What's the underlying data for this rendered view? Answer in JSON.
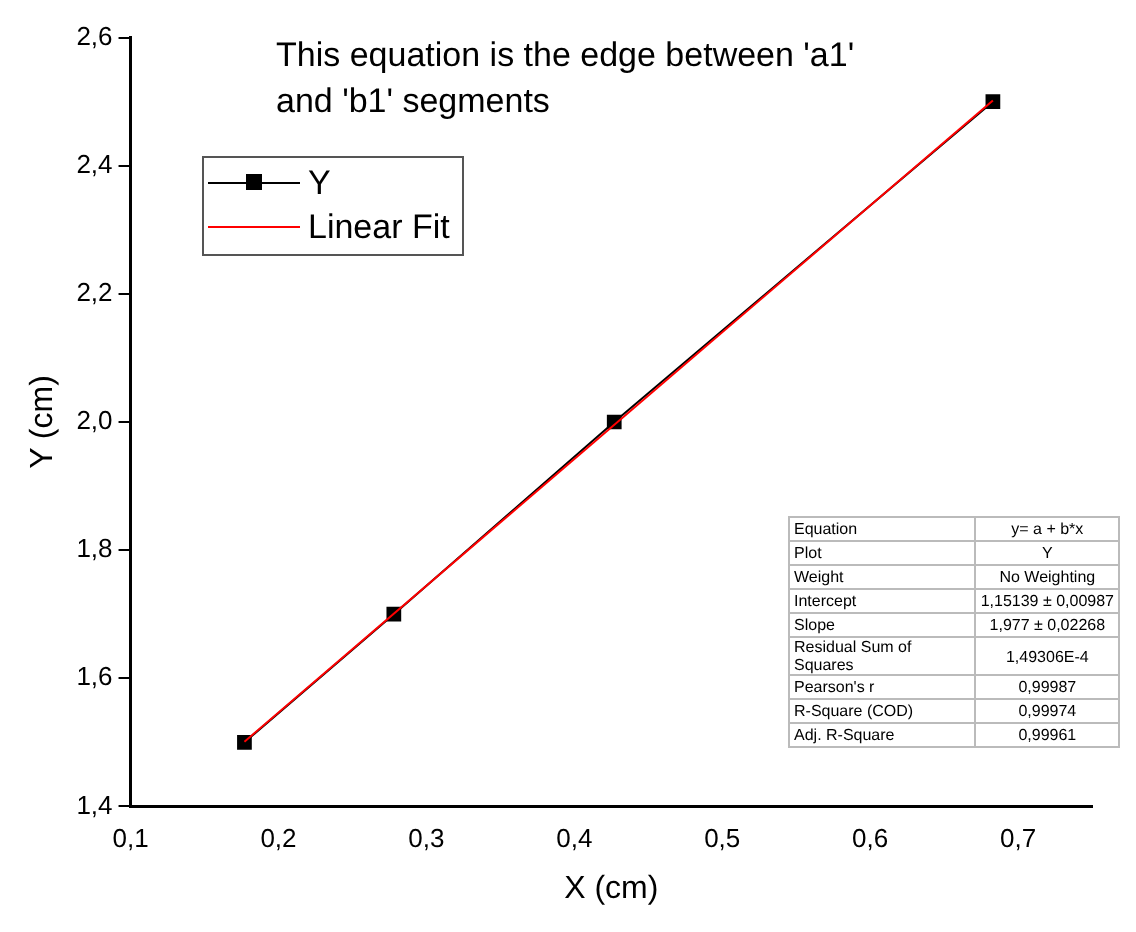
{
  "chart_data": {
    "type": "line",
    "xlabel": "X (cm)",
    "ylabel": "Y (cm)",
    "xlim": [
      0.1,
      0.75
    ],
    "ylim": [
      1.4,
      2.6
    ],
    "xticks": [
      {
        "value": 0.1,
        "label": "0,1"
      },
      {
        "value": 0.2,
        "label": "0,2"
      },
      {
        "value": 0.3,
        "label": "0,3"
      },
      {
        "value": 0.4,
        "label": "0,4"
      },
      {
        "value": 0.5,
        "label": "0,5"
      },
      {
        "value": 0.6,
        "label": "0,6"
      },
      {
        "value": 0.7,
        "label": "0,7"
      }
    ],
    "yticks": [
      {
        "value": 1.4,
        "label": "1,4"
      },
      {
        "value": 1.6,
        "label": "1,6"
      },
      {
        "value": 1.8,
        "label": "1,8"
      },
      {
        "value": 2.0,
        "label": "2,0"
      },
      {
        "value": 2.2,
        "label": "2,2"
      },
      {
        "value": 2.4,
        "label": "2,4"
      },
      {
        "value": 2.6,
        "label": "2,6"
      }
    ],
    "grid": false,
    "legend": "top left",
    "series": [
      {
        "name": "Y",
        "color": "#000000",
        "marker": "square",
        "x": [
          0.177,
          0.278,
          0.427,
          0.683
        ],
        "values": [
          1.5,
          1.7,
          2.0,
          2.5
        ]
      },
      {
        "name": "Linear Fit",
        "color": "#ff0000",
        "marker": "none",
        "x": [
          0.177,
          0.683
        ],
        "values": [
          1.501,
          2.502
        ]
      }
    ],
    "annotations": [
      "This equation is the edge between 'a1' and 'b1' segments",
      "Equation",
      "y= a + b*x",
      "Plot",
      "Y",
      "Weight",
      "No Weighting",
      "Intercept",
      "1,15139 ± 0,00987",
      "Slope",
      "1,977 ± 0,02268",
      "Residual Sum of Squares",
      "1,49306E-4",
      "Pearson's r",
      "0,99987",
      "R-Square (COD)",
      "0,99974",
      "Adj. R-Square",
      "0,99961"
    ]
  }
}
